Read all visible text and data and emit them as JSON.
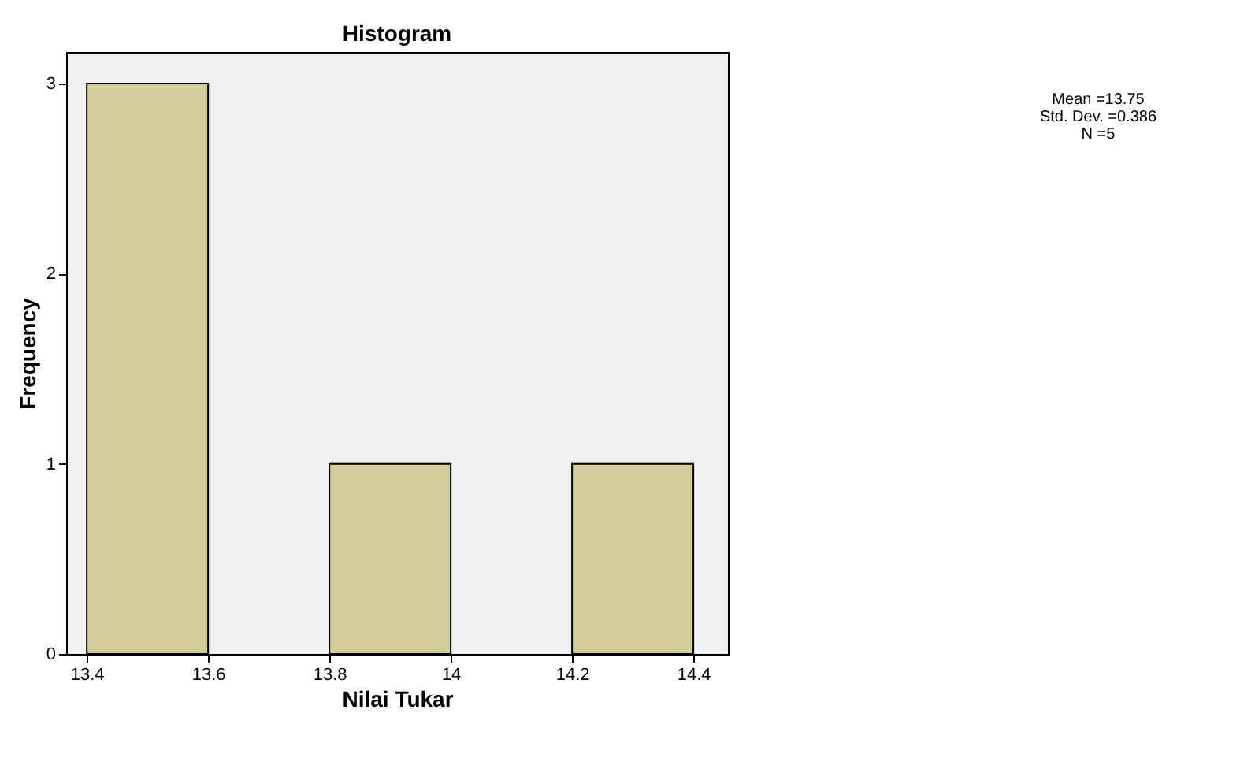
{
  "chart_data": {
    "type": "histogram",
    "title": "Histogram",
    "xlabel": "Nilai Tukar",
    "ylabel": "Frequency",
    "bins": [
      13.4,
      13.6,
      13.8,
      14.0,
      14.2,
      14.4
    ],
    "values": [
      3,
      0,
      1,
      0,
      1
    ],
    "color": "#d3ce97",
    "xlim": [
      13.366,
      14.457
    ],
    "xticks": [
      13.4,
      13.6,
      13.8,
      14,
      14.2,
      14.4
    ],
    "ylim": [
      0,
      3.166
    ],
    "yticks": [
      0,
      1,
      2,
      3
    ],
    "grid": false,
    "annotations": [
      "Mean =13.75",
      "Std. Dev. =0.386",
      "N =5"
    ]
  }
}
